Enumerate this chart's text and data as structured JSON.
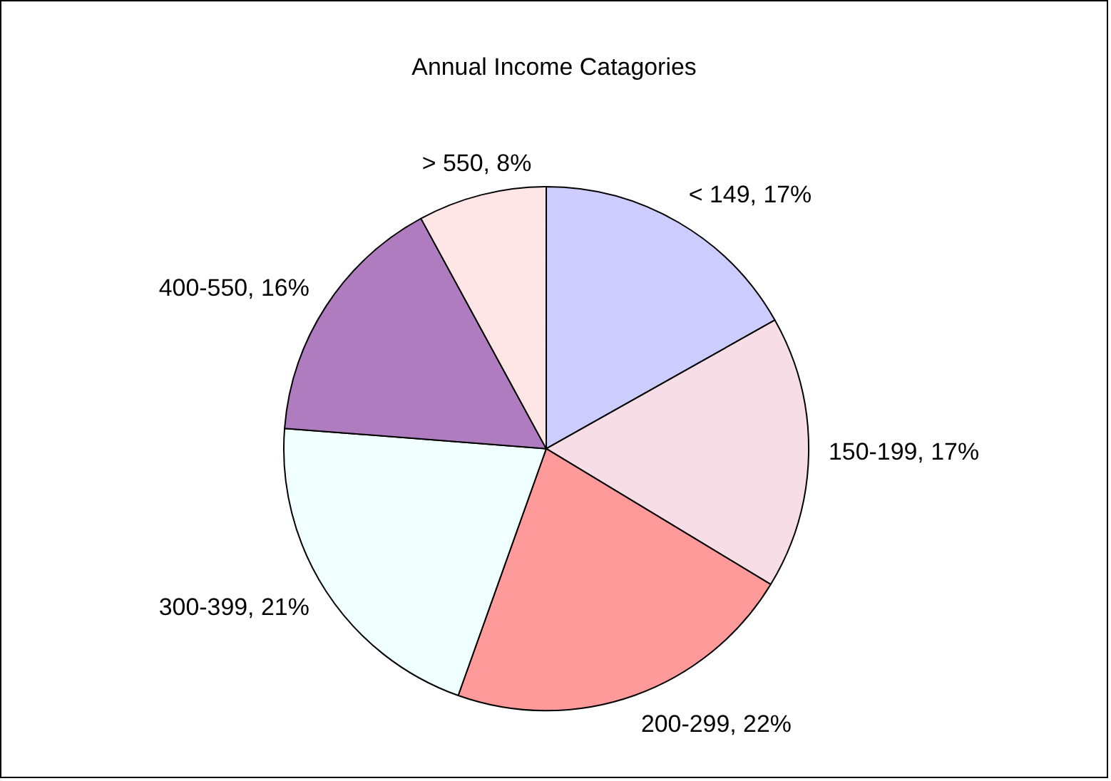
{
  "chart_data": {
    "type": "pie",
    "title": "Annual Income Catagories",
    "categories": [
      "< 149",
      "150-199",
      "200-299",
      "300-399",
      "400-550",
      "> 550"
    ],
    "values": [
      17,
      17,
      22,
      21,
      16,
      8
    ],
    "value_labels": [
      "17%",
      "17%",
      "22%",
      "21%",
      "16%",
      "8%"
    ],
    "colors": [
      "#ccccff",
      "#f6dde6",
      "#ff9a9a",
      "#f0ffff",
      "#b07cc0",
      "#ffe6e6"
    ],
    "legend": false
  }
}
